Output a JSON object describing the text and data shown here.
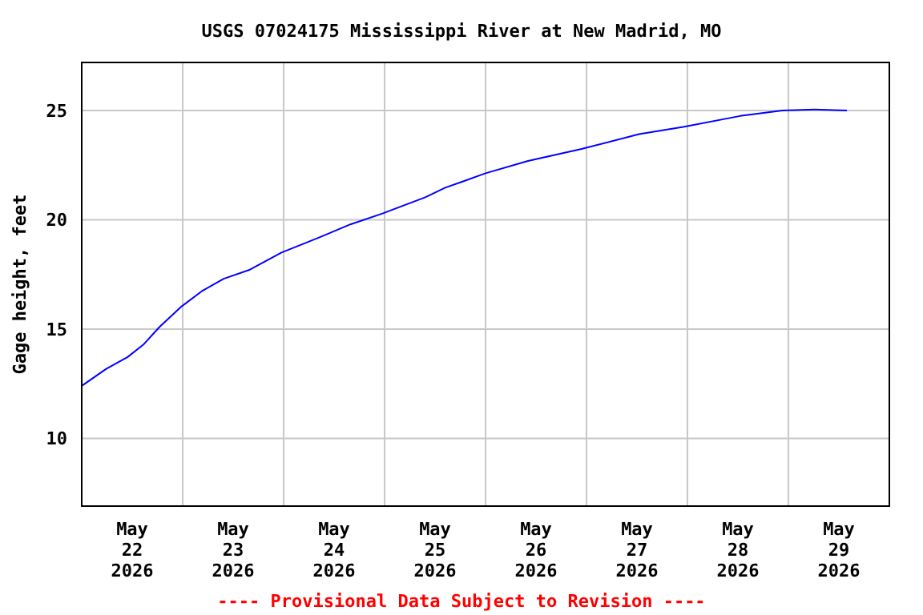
{
  "chart_data": {
    "type": "line",
    "title": "USGS 07024175 Mississippi River at New Madrid, MO",
    "ylabel": "Gage height, feet",
    "annotations": [
      "---- Provisional Data Subject to Revision ----"
    ],
    "x": [
      "2026-05-22T00:00",
      "2026-05-22T05:50",
      "2026-05-22T10:55",
      "2026-05-22T14:40",
      "2026-05-22T18:30",
      "2026-05-22T23:30",
      "2026-05-23T04:35",
      "2026-05-23T09:45",
      "2026-05-23T16:00",
      "2026-05-23T23:30",
      "2026-05-24T08:25",
      "2026-05-24T16:00",
      "2026-05-24T23:30",
      "2026-05-25T09:40",
      "2026-05-25T14:25",
      "2026-05-25T18:40",
      "2026-05-26T00:00",
      "2026-05-26T10:05",
      "2026-05-26T22:50",
      "2026-05-27T12:30",
      "2026-05-27T23:15",
      "2026-05-28T12:30",
      "2026-05-28T22:35",
      "2026-05-29T06:15",
      "2026-05-29T13:55"
    ],
    "series": [
      {
        "color": "#0000ff",
        "values": [
          12.4,
          13.18,
          13.72,
          14.29,
          15.1,
          16.0,
          16.74,
          17.3,
          17.72,
          18.5,
          19.19,
          19.8,
          20.29,
          21.03,
          21.47,
          21.76,
          22.13,
          22.69,
          23.24,
          23.92,
          24.26,
          24.75,
          25.0,
          25.05,
          25.0
        ]
      }
    ],
    "xlim": [
      "2026-05-22T00:00",
      "2026-05-30T00:00"
    ],
    "xticks": [
      {
        "value": "2026-05-22T12:00",
        "label": "May\n22\n2026"
      },
      {
        "value": "2026-05-23T12:00",
        "label": "May\n23\n2026"
      },
      {
        "value": "2026-05-24T12:00",
        "label": "May\n24\n2026"
      },
      {
        "value": "2026-05-25T12:00",
        "label": "May\n25\n2026"
      },
      {
        "value": "2026-05-26T12:00",
        "label": "May\n26\n2026"
      },
      {
        "value": "2026-05-27T12:00",
        "label": "May\n27\n2026"
      },
      {
        "value": "2026-05-28T12:00",
        "label": "May\n28\n2026"
      },
      {
        "value": "2026-05-29T12:00",
        "label": "May\n29\n2026"
      },
      {
        "value": "2026-05-23T00:00",
        "label": null
      },
      {
        "value": "2026-05-24T00:00",
        "label": null
      },
      {
        "value": "2026-05-25T00:00",
        "label": null
      },
      {
        "value": "2026-05-26T00:00",
        "label": null
      },
      {
        "value": "2026-05-27T00:00",
        "label": null
      },
      {
        "value": "2026-05-28T00:00",
        "label": null
      },
      {
        "value": "2026-05-29T00:00",
        "label": null
      }
    ],
    "ylim": [
      6.9,
      27.2
    ],
    "yticks": [
      10,
      15,
      20,
      25
    ],
    "grid": true
  }
}
